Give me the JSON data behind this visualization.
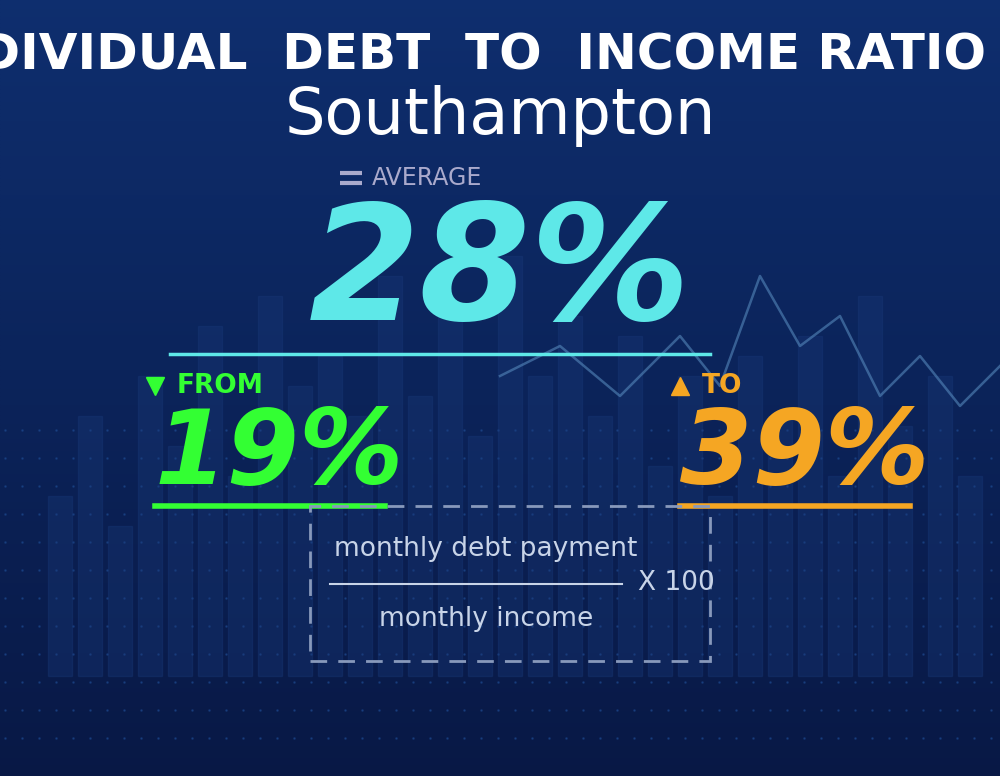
{
  "bg_color": "#0c2156",
  "title_line1": "INDIVIDUAL  DEBT  TO  INCOME RATIO  IN",
  "title_line2": "Southampton",
  "title_color": "#ffffff",
  "title1_fontsize": 36,
  "title2_fontsize": 46,
  "average_label": "AVERAGE",
  "average_value": "28%",
  "average_color": "#5ee8e8",
  "average_label_color": "#aaaacc",
  "average_fontsize": 115,
  "average_label_fontsize": 17,
  "from_label": "FROM",
  "from_value": "19%",
  "from_color": "#33ff33",
  "from_fontsize": 75,
  "from_label_fontsize": 19,
  "to_label": "TO",
  "to_value": "39%",
  "to_color": "#f5a623",
  "to_fontsize": 75,
  "to_label_fontsize": 19,
  "formula_numerator": "monthly debt payment",
  "formula_denominator": "monthly income",
  "formula_multiplier": "X 100",
  "formula_color": "#c8d4e8",
  "formula_fontsize": 19,
  "line_color": "#5ee8e8",
  "green_line_color": "#33ff33",
  "gold_line_color": "#f5a623",
  "bar_color": "#1a3a7a",
  "dot_color": "#1e4a90"
}
